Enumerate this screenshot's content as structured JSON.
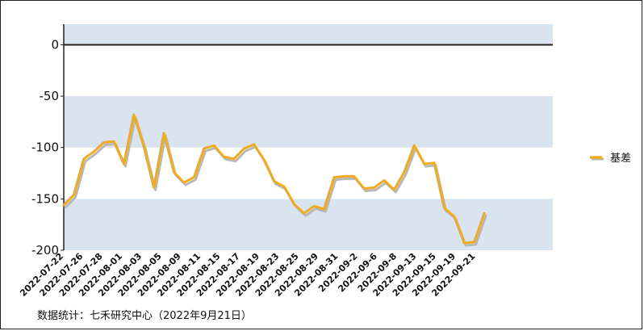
{
  "chart_data": {
    "type": "line",
    "title": "",
    "xlabel": "",
    "ylabel": "",
    "ylim": [
      -200,
      20
    ],
    "yticks": [
      0,
      -50,
      -100,
      -150,
      -200
    ],
    "x_tick_labels": [
      "2022-07-22",
      "2022-07-26",
      "2022-07-28",
      "2022-08-01",
      "2022-08-03",
      "2022-08-05",
      "2022-08-09",
      "2022-08-11",
      "2022-08-15",
      "2022-08-17",
      "2022-08-19",
      "2022-08-23",
      "2022-08-25",
      "2022-08-29",
      "2022-08-31",
      "2022-09-2",
      "2022-09-6",
      "2022-09-8",
      "2022-09-13",
      "2022-09-15",
      "2022-09-19",
      "2022-09-21"
    ],
    "legend_position": "right",
    "series": [
      {
        "name": "基差",
        "color": "#f0ab1e",
        "shadow_color": "#b8b8b8",
        "values": [
          -156,
          -146,
          -111,
          -104,
          -95,
          -94,
          -116,
          -68,
          -99,
          -139,
          -86,
          -124,
          -134,
          -129,
          -101,
          -98,
          -109,
          -111,
          -101,
          -97,
          -112,
          -133,
          -138,
          -155,
          -164,
          -157,
          -160,
          -129,
          -128,
          -128,
          -140,
          -139,
          -132,
          -141,
          -124,
          -98,
          -116,
          -115,
          -159,
          -167,
          -193,
          -192,
          -164
        ]
      }
    ]
  },
  "bands": [
    {
      "from": 0,
      "to": 20,
      "color": "#d9e4ef"
    },
    {
      "from": -100,
      "to": -50,
      "color": "#d9e4ef"
    },
    {
      "from": -200,
      "to": -150,
      "color": "#d9e4ef"
    }
  ],
  "zero_line_color": "#222222",
  "axis_color": "#222222",
  "source_note": "数据统计：七禾研究中心（2022年9月21日）"
}
